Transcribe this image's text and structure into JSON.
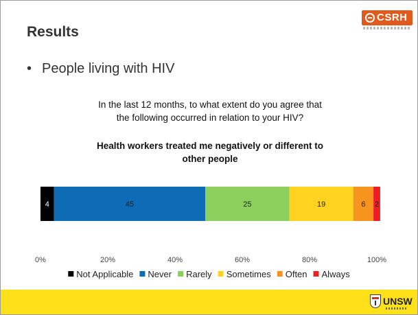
{
  "slide": {
    "title": "Results",
    "bullet": "People living with HIV",
    "question_line1": "In the last 12 months, to what extent do you agree that",
    "question_line2": "the following occurred in relation to your HIV?",
    "logo_top_text": "CSRH",
    "logo_bottom_text": "UNSW"
  },
  "chart_data": {
    "type": "bar",
    "orientation": "horizontal-stacked-100",
    "title": "Health workers treated me negatively or different to other people",
    "title_line1": "Health workers treated me negatively or different to",
    "title_line2": "other people",
    "categories": [
      ""
    ],
    "series": [
      {
        "name": "Not Applicable",
        "values": [
          4
        ],
        "color": "#000000",
        "label_color": "#ffffff"
      },
      {
        "name": "Never",
        "values": [
          45
        ],
        "color": "#0e6bb5",
        "label_color": "#222222"
      },
      {
        "name": "Rarely",
        "values": [
          25
        ],
        "color": "#8ccf5c",
        "label_color": "#222222"
      },
      {
        "name": "Sometimes",
        "values": [
          19
        ],
        "color": "#ffd31f",
        "label_color": "#222222"
      },
      {
        "name": "Often",
        "values": [
          6
        ],
        "color": "#f7931e",
        "label_color": "#222222"
      },
      {
        "name": "Always",
        "values": [
          2
        ],
        "color": "#ee1c25",
        "label_color": "#222222"
      }
    ],
    "xlim": [
      0,
      100
    ],
    "x_ticks": [
      "0%",
      "20%",
      "40%",
      "60%",
      "80%",
      "100%"
    ],
    "legend_position": "bottom",
    "grid": false
  }
}
